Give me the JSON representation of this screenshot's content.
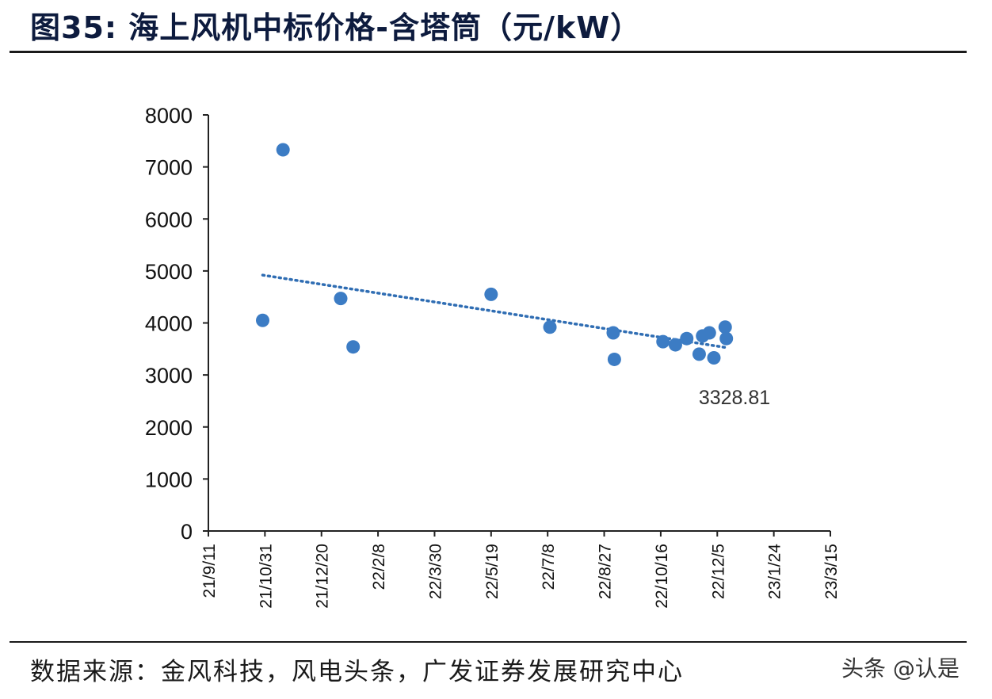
{
  "title": "图35:  海上风机中标价格-含塔筒（元/kW）",
  "source": "数据来源：金风科技，风电头条，广发证券发展研究中心",
  "watermark": "头条 @认是",
  "colors": {
    "point": "#3c7cc4",
    "trend": "#2f6db3",
    "axis": "#222222",
    "title": "#0d1b3e"
  },
  "chart_data": {
    "type": "scatter",
    "title": "海上风机中标价格-含塔筒（元/kW）",
    "xlabel": "",
    "ylabel": "",
    "x_tick_labels": [
      "21/9/11",
      "21/10/31",
      "21/12/20",
      "22/2/8",
      "22/3/30",
      "22/5/19",
      "22/7/8",
      "22/8/27",
      "22/10/16",
      "22/12/5",
      "23/1/24",
      "23/3/15"
    ],
    "x_range": [
      "2021-09-11",
      "2023-03-15"
    ],
    "ylim": [
      0,
      8000
    ],
    "y_ticks": [
      0,
      1000,
      2000,
      3000,
      4000,
      5000,
      6000,
      7000,
      8000
    ],
    "grid": false,
    "series": [
      {
        "points": [
          {
            "x": "2021-10-29",
            "y": 4050
          },
          {
            "x": "2021-11-16",
            "y": 7330
          },
          {
            "x": "2022-01-06",
            "y": 4470
          },
          {
            "x": "2022-01-17",
            "y": 3540
          },
          {
            "x": "2022-05-19",
            "y": 4550
          },
          {
            "x": "2022-07-10",
            "y": 3920
          },
          {
            "x": "2022-09-04",
            "y": 3810
          },
          {
            "x": "2022-09-05",
            "y": 3300
          },
          {
            "x": "2022-10-18",
            "y": 3640
          },
          {
            "x": "2022-10-29",
            "y": 3580
          },
          {
            "x": "2022-11-08",
            "y": 3700
          },
          {
            "x": "2022-11-19",
            "y": 3400
          },
          {
            "x": "2022-11-22",
            "y": 3750
          },
          {
            "x": "2022-11-28",
            "y": 3810
          },
          {
            "x": "2022-12-02",
            "y": 3330
          },
          {
            "x": "2022-12-12",
            "y": 3920
          },
          {
            "x": "2022-12-13",
            "y": 3700
          }
        ]
      }
    ],
    "trendline": {
      "style": "dotted",
      "start": {
        "x": "2021-10-29",
        "y": 4920
      },
      "end": {
        "x": "2022-12-12",
        "y": 3530
      }
    },
    "annotations": [
      {
        "text": "3328.81"
      }
    ]
  }
}
